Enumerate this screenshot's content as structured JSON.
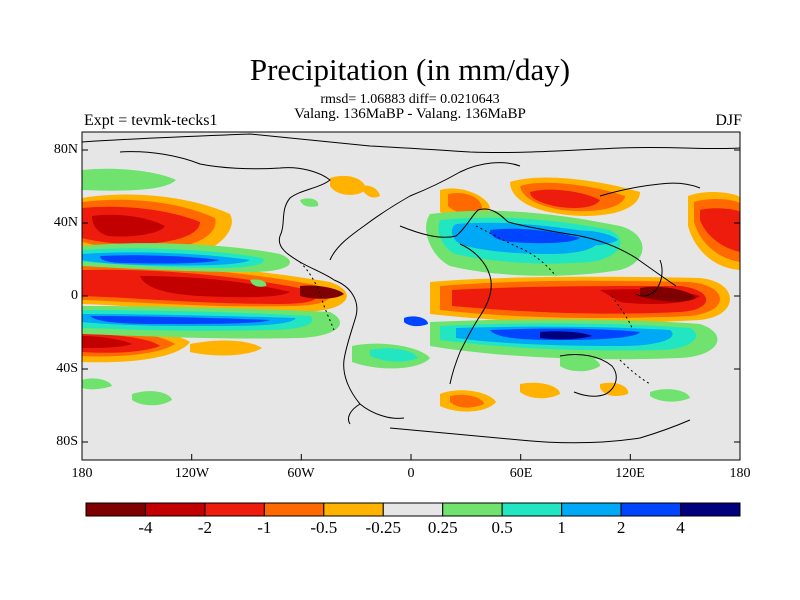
{
  "header": {
    "title": "Precipitation (in mm/day)",
    "stats": "rmsd= 1.06883 diff= 0.0210643",
    "subtitle": "Valang. 136MaBP - Valang. 136MaBP",
    "left_label": "Expt = tevmk-tecks1",
    "right_label": "DJF"
  },
  "axes": {
    "y_ticks": [
      "80N",
      "40N",
      "0",
      "40S",
      "80S"
    ],
    "x_ticks": [
      "180",
      "120W",
      "60W",
      "0",
      "60E",
      "120E",
      "180"
    ]
  },
  "colorbar": {
    "labels": [
      "-4",
      "-2",
      "-1",
      "-0.5",
      "-0.25",
      "0.25",
      "0.5",
      "1",
      "2",
      "4"
    ],
    "colors": [
      "#7f0000",
      "#c30000",
      "#ee1c0c",
      "#ff6a00",
      "#ffb300",
      "#e6e6e6",
      "#6fe36e",
      "#22e6c2",
      "#00a9f5",
      "#0044ff",
      "#00007f"
    ]
  },
  "map": {
    "background_color": "#e6e6e6",
    "projection": "cylindrical equidistant",
    "longitude_range": [
      -180,
      180
    ],
    "latitude_range": [
      -90,
      90
    ]
  }
}
